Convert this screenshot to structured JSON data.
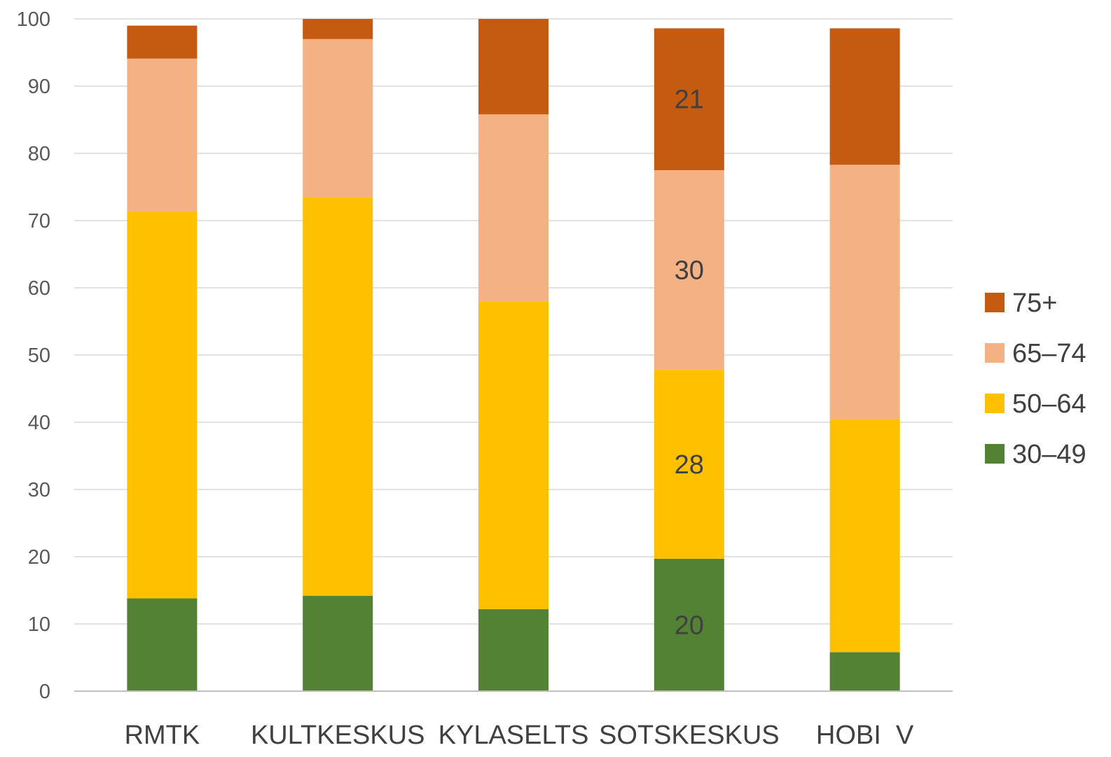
{
  "chart_data": {
    "type": "bar",
    "stacked": true,
    "title": "",
    "xlabel": "",
    "ylabel": "",
    "ylim": [
      0,
      100
    ],
    "yticks": [
      0,
      10,
      20,
      30,
      40,
      50,
      60,
      70,
      80,
      90,
      100
    ],
    "grid": true,
    "legend_position": "right",
    "categories": [
      "RMTK",
      "KULTKESKUS",
      "KYLASELTS",
      "SOTSKESKUS",
      "HOBI  V"
    ],
    "series": [
      {
        "name": "30–49",
        "color": "#548235",
        "values": [
          13.8,
          14.2,
          12.2,
          19.7,
          5.8
        ]
      },
      {
        "name": "50–64",
        "color": "#FFC000",
        "values": [
          57.5,
          59.3,
          45.8,
          28.1,
          34.7
        ]
      },
      {
        "name": "65–74",
        "color": "#F4B183",
        "values": [
          22.8,
          23.5,
          27.8,
          29.7,
          37.8
        ]
      },
      {
        "name": "75+",
        "color": "#C55A11",
        "values": [
          4.9,
          3.0,
          14.2,
          21.1,
          20.3
        ]
      }
    ],
    "data_labels": [
      {
        "category": "SOTSKESKUS",
        "series": "30–49",
        "text": "20"
      },
      {
        "category": "SOTSKESKUS",
        "series": "50–64",
        "text": "28"
      },
      {
        "category": "SOTSKESKUS",
        "series": "65–74",
        "text": "30"
      },
      {
        "category": "SOTSKESKUS",
        "series": "75+",
        "text": "21"
      }
    ]
  }
}
